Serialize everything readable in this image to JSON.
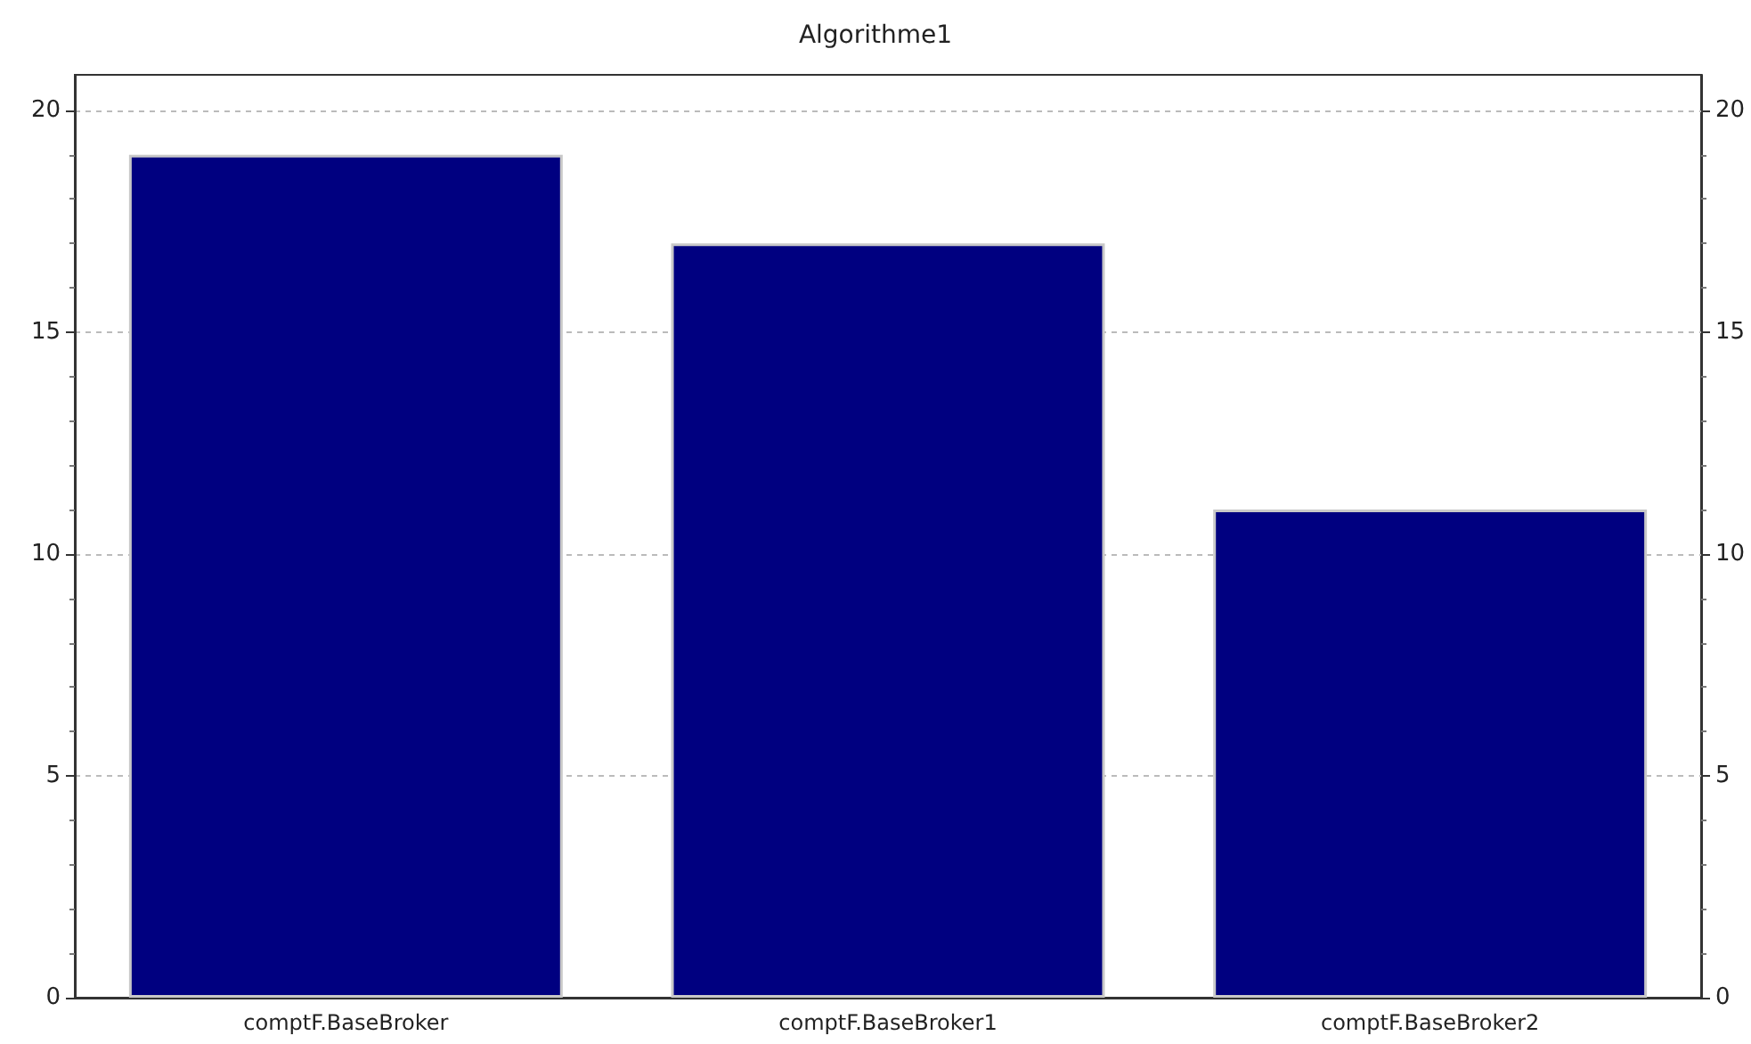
{
  "chart_data": {
    "type": "bar",
    "title": "Algorithme1",
    "categories": [
      "comptF.BaseBroker",
      "comptF.BaseBroker1",
      "comptF.BaseBroker2"
    ],
    "values": [
      19,
      17,
      11
    ],
    "color": "#000080",
    "ylim": [
      0,
      20.8
    ],
    "yticks": [
      0,
      5,
      10,
      15,
      20
    ],
    "y2lim": [
      0,
      20.8
    ],
    "y2ticks": [
      0,
      5,
      10,
      15,
      20
    ],
    "grid": "y"
  }
}
